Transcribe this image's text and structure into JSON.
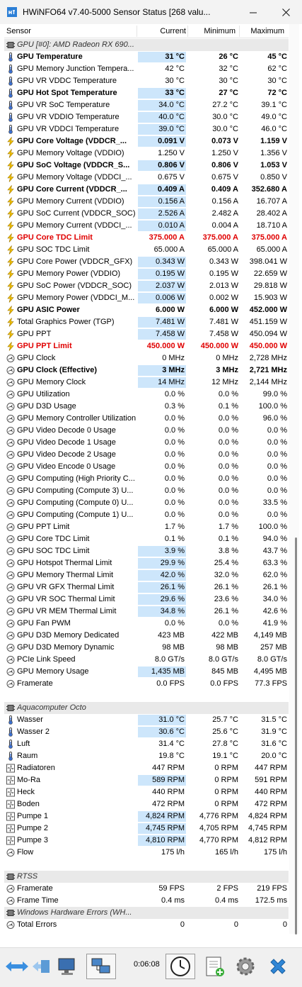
{
  "window": {
    "title": "HWiNFO64 v7.40-5000 Sensor Status [268 valu...",
    "icon": "hwinfo-app-icon"
  },
  "columns": {
    "sensor": "Sensor",
    "current": "Current",
    "minimum": "Minimum",
    "maximum": "Maximum"
  },
  "rows": [
    {
      "type": "group",
      "name": "GPU [#0]: AMD Radeon RX 690...",
      "icon": "chip-icon"
    },
    {
      "type": "row",
      "name": "GPU Temperature",
      "cur": "31 °C",
      "min": "26 °C",
      "max": "45 °C",
      "icon": "thermometer-icon",
      "bold": true,
      "hl": true
    },
    {
      "type": "row",
      "name": "GPU Memory Junction Tempera...",
      "cur": "42 °C",
      "min": "32 °C",
      "max": "62 °C",
      "icon": "thermometer-icon"
    },
    {
      "type": "row",
      "name": "GPU VR VDDC Temperature",
      "cur": "30 °C",
      "min": "30 °C",
      "max": "30 °C",
      "icon": "thermometer-icon"
    },
    {
      "type": "row",
      "name": "GPU Hot Spot Temperature",
      "cur": "33 °C",
      "min": "27 °C",
      "max": "72 °C",
      "icon": "thermometer-icon",
      "bold": true,
      "hl": true
    },
    {
      "type": "row",
      "name": "GPU VR SoC Temperature",
      "cur": "34.0 °C",
      "min": "27.2 °C",
      "max": "39.1 °C",
      "icon": "thermometer-icon",
      "hl": true
    },
    {
      "type": "row",
      "name": "GPU VR VDDIO Temperature",
      "cur": "40.0 °C",
      "min": "30.0 °C",
      "max": "49.0 °C",
      "icon": "thermometer-icon",
      "hl": true
    },
    {
      "type": "row",
      "name": "GPU VR VDDCI Temperature",
      "cur": "39.0 °C",
      "min": "30.0 °C",
      "max": "46.0 °C",
      "icon": "thermometer-icon",
      "hl": true
    },
    {
      "type": "row",
      "name": "GPU Core Voltage (VDDCR_...",
      "cur": "0.091 V",
      "min": "0.073 V",
      "max": "1.159 V",
      "icon": "bolt-icon",
      "bold": true,
      "hl": true
    },
    {
      "type": "row",
      "name": "GPU Memory Voltage (VDDIO)",
      "cur": "1.250 V",
      "min": "1.250 V",
      "max": "1.356 V",
      "icon": "bolt-icon"
    },
    {
      "type": "row",
      "name": "GPU SoC Voltage (VDDCR_S...",
      "cur": "0.806 V",
      "min": "0.806 V",
      "max": "1.053 V",
      "icon": "bolt-icon",
      "bold": true,
      "hl": true
    },
    {
      "type": "row",
      "name": "GPU Memory Voltage (VDDCI_...",
      "cur": "0.675 V",
      "min": "0.675 V",
      "max": "0.850 V",
      "icon": "bolt-icon"
    },
    {
      "type": "row",
      "name": "GPU Core Current (VDDCR_...",
      "cur": "0.409 A",
      "min": "0.409 A",
      "max": "352.680 A",
      "icon": "bolt-icon",
      "bold": true,
      "hl": true
    },
    {
      "type": "row",
      "name": "GPU Memory Current (VDDIO)",
      "cur": "0.156 A",
      "min": "0.156 A",
      "max": "16.707 A",
      "icon": "bolt-icon",
      "hl": true
    },
    {
      "type": "row",
      "name": "GPU SoC Current (VDDCR_SOC)",
      "cur": "2.526 A",
      "min": "2.482 A",
      "max": "28.402 A",
      "icon": "bolt-icon",
      "hl": true
    },
    {
      "type": "row",
      "name": "GPU Memory Current (VDDCI_...",
      "cur": "0.010 A",
      "min": "0.004 A",
      "max": "18.710 A",
      "icon": "bolt-icon",
      "hl": true
    },
    {
      "type": "row",
      "name": "GPU Core TDC Limit",
      "cur": "375.000 A",
      "min": "375.000 A",
      "max": "375.000 A",
      "icon": "bolt-icon",
      "red": true
    },
    {
      "type": "row",
      "name": "GPU SOC TDC Limit",
      "cur": "65.000 A",
      "min": "65.000 A",
      "max": "65.000 A",
      "icon": "bolt-icon"
    },
    {
      "type": "row",
      "name": "GPU Core Power (VDDCR_GFX)",
      "cur": "0.343 W",
      "min": "0.343 W",
      "max": "398.041 W",
      "icon": "bolt-icon",
      "hl": true
    },
    {
      "type": "row",
      "name": "GPU Memory Power (VDDIO)",
      "cur": "0.195 W",
      "min": "0.195 W",
      "max": "22.659 W",
      "icon": "bolt-icon",
      "hl": true
    },
    {
      "type": "row",
      "name": "GPU SoC Power (VDDCR_SOC)",
      "cur": "2.037 W",
      "min": "2.013 W",
      "max": "29.818 W",
      "icon": "bolt-icon",
      "hl": true
    },
    {
      "type": "row",
      "name": "GPU Memory Power (VDDCI_M...",
      "cur": "0.006 W",
      "min": "0.002 W",
      "max": "15.903 W",
      "icon": "bolt-icon",
      "hl": true
    },
    {
      "type": "row",
      "name": "GPU ASIC Power",
      "cur": "6.000 W",
      "min": "6.000 W",
      "max": "452.000 W",
      "icon": "bolt-icon",
      "bold": true
    },
    {
      "type": "row",
      "name": "Total Graphics Power (TGP)",
      "cur": "7.481 W",
      "min": "7.481 W",
      "max": "451.159 W",
      "icon": "bolt-icon",
      "hl": true
    },
    {
      "type": "row",
      "name": "GPU PPT",
      "cur": "7.458 W",
      "min": "7.458 W",
      "max": "450.094 W",
      "icon": "bolt-icon",
      "hl": true
    },
    {
      "type": "row",
      "name": "GPU PPT Limit",
      "cur": "450.000 W",
      "min": "450.000 W",
      "max": "450.000 W",
      "icon": "bolt-icon",
      "red": true
    },
    {
      "type": "row",
      "name": "GPU Clock",
      "cur": "0 MHz",
      "min": "0 MHz",
      "max": "2,728 MHz",
      "icon": "gauge-icon"
    },
    {
      "type": "row",
      "name": "GPU Clock (Effective)",
      "cur": "3 MHz",
      "min": "3 MHz",
      "max": "2,721 MHz",
      "icon": "gauge-icon",
      "bold": true,
      "hl": true
    },
    {
      "type": "row",
      "name": "GPU Memory Clock",
      "cur": "14 MHz",
      "min": "12 MHz",
      "max": "2,144 MHz",
      "icon": "gauge-icon",
      "hl": true
    },
    {
      "type": "row",
      "name": "GPU Utilization",
      "cur": "0.0 %",
      "min": "0.0 %",
      "max": "99.0 %",
      "icon": "gauge-icon"
    },
    {
      "type": "row",
      "name": "GPU D3D Usage",
      "cur": "0.3 %",
      "min": "0.1 %",
      "max": "100.0 %",
      "icon": "gauge-icon"
    },
    {
      "type": "row",
      "name": "GPU Memory Controller Utilization",
      "cur": "0.0 %",
      "min": "0.0 %",
      "max": "96.0 %",
      "icon": "gauge-icon"
    },
    {
      "type": "row",
      "name": "GPU Video Decode 0 Usage",
      "cur": "0.0 %",
      "min": "0.0 %",
      "max": "0.0 %",
      "icon": "gauge-icon"
    },
    {
      "type": "row",
      "name": "GPU Video Decode 1 Usage",
      "cur": "0.0 %",
      "min": "0.0 %",
      "max": "0.0 %",
      "icon": "gauge-icon"
    },
    {
      "type": "row",
      "name": "GPU Video Decode 2 Usage",
      "cur": "0.0 %",
      "min": "0.0 %",
      "max": "0.0 %",
      "icon": "gauge-icon"
    },
    {
      "type": "row",
      "name": "GPU Video Encode 0 Usage",
      "cur": "0.0 %",
      "min": "0.0 %",
      "max": "0.0 %",
      "icon": "gauge-icon"
    },
    {
      "type": "row",
      "name": "GPU Computing (High Priority C...",
      "cur": "0.0 %",
      "min": "0.0 %",
      "max": "0.0 %",
      "icon": "gauge-icon"
    },
    {
      "type": "row",
      "name": "GPU Computing (Compute 3) U...",
      "cur": "0.0 %",
      "min": "0.0 %",
      "max": "0.0 %",
      "icon": "gauge-icon"
    },
    {
      "type": "row",
      "name": "GPU Computing (Compute 0) U...",
      "cur": "0.0 %",
      "min": "0.0 %",
      "max": "33.5 %",
      "icon": "gauge-icon"
    },
    {
      "type": "row",
      "name": "GPU Computing (Compute 1) U...",
      "cur": "0.0 %",
      "min": "0.0 %",
      "max": "0.0 %",
      "icon": "gauge-icon"
    },
    {
      "type": "row",
      "name": "GPU PPT Limit",
      "cur": "1.7 %",
      "min": "1.7 %",
      "max": "100.0 %",
      "icon": "gauge-icon"
    },
    {
      "type": "row",
      "name": "GPU Core TDC Limit",
      "cur": "0.1 %",
      "min": "0.1 %",
      "max": "94.0 %",
      "icon": "gauge-icon"
    },
    {
      "type": "row",
      "name": "GPU SOC TDC Limit",
      "cur": "3.9 %",
      "min": "3.8 %",
      "max": "43.7 %",
      "icon": "gauge-icon",
      "hl": true
    },
    {
      "type": "row",
      "name": "GPU Hotspot Thermal Limit",
      "cur": "29.9 %",
      "min": "25.4 %",
      "max": "63.3 %",
      "icon": "gauge-icon",
      "hl": true
    },
    {
      "type": "row",
      "name": "GPU Memory Thermal Limit",
      "cur": "42.0 %",
      "min": "32.0 %",
      "max": "62.0 %",
      "icon": "gauge-icon",
      "hl": true
    },
    {
      "type": "row",
      "name": "GPU VR GFX Thermal Limit",
      "cur": "26.1 %",
      "min": "26.1 %",
      "max": "26.1 %",
      "icon": "gauge-icon",
      "hl": true
    },
    {
      "type": "row",
      "name": "GPU VR SOC Thermal Limit",
      "cur": "29.6 %",
      "min": "23.6 %",
      "max": "34.0 %",
      "icon": "gauge-icon",
      "hl": true
    },
    {
      "type": "row",
      "name": "GPU VR MEM Thermal Limit",
      "cur": "34.8 %",
      "min": "26.1 %",
      "max": "42.6 %",
      "icon": "gauge-icon",
      "hl": true
    },
    {
      "type": "row",
      "name": "GPU Fan PWM",
      "cur": "0.0 %",
      "min": "0.0 %",
      "max": "41.9 %",
      "icon": "gauge-icon"
    },
    {
      "type": "row",
      "name": "GPU D3D Memory Dedicated",
      "cur": "423 MB",
      "min": "422 MB",
      "max": "4,149 MB",
      "icon": "gauge-icon"
    },
    {
      "type": "row",
      "name": "GPU D3D Memory Dynamic",
      "cur": "98 MB",
      "min": "98 MB",
      "max": "257 MB",
      "icon": "gauge-icon"
    },
    {
      "type": "row",
      "name": "PCIe Link Speed",
      "cur": "8.0 GT/s",
      "min": "8.0 GT/s",
      "max": "8.0 GT/s",
      "icon": "gauge-icon"
    },
    {
      "type": "row",
      "name": "GPU Memory Usage",
      "cur": "1,435 MB",
      "min": "845 MB",
      "max": "4,495 MB",
      "icon": "gauge-icon",
      "hl": true
    },
    {
      "type": "row",
      "name": "Framerate",
      "cur": "0.0 FPS",
      "min": "0.0 FPS",
      "max": "77.3 FPS",
      "icon": "gauge-icon"
    },
    {
      "type": "blank"
    },
    {
      "type": "group",
      "name": "Aquacomputer Octo",
      "icon": "chip-icon"
    },
    {
      "type": "row",
      "name": "Wasser",
      "cur": "31.0 °C",
      "min": "25.7 °C",
      "max": "31.5 °C",
      "icon": "thermometer-icon",
      "hl": true
    },
    {
      "type": "row",
      "name": "Wasser 2",
      "cur": "30.6 °C",
      "min": "25.6 °C",
      "max": "31.9 °C",
      "icon": "thermometer-icon",
      "hl": true
    },
    {
      "type": "row",
      "name": "Luft",
      "cur": "31.4 °C",
      "min": "27.8 °C",
      "max": "31.6 °C",
      "icon": "thermometer-icon"
    },
    {
      "type": "row",
      "name": "Raum",
      "cur": "19.8 °C",
      "min": "19.1 °C",
      "max": "20.0 °C",
      "icon": "thermometer-icon"
    },
    {
      "type": "row",
      "name": "Radiatoren",
      "cur": "447 RPM",
      "min": "0 RPM",
      "max": "447 RPM",
      "icon": "fan-icon"
    },
    {
      "type": "row",
      "name": "Mo-Ra",
      "cur": "589 RPM",
      "min": "0 RPM",
      "max": "591 RPM",
      "icon": "fan-icon",
      "hl": true
    },
    {
      "type": "row",
      "name": "Heck",
      "cur": "440 RPM",
      "min": "0 RPM",
      "max": "440 RPM",
      "icon": "fan-icon"
    },
    {
      "type": "row",
      "name": "Boden",
      "cur": "472 RPM",
      "min": "0 RPM",
      "max": "472 RPM",
      "icon": "fan-icon"
    },
    {
      "type": "row",
      "name": "Pumpe 1",
      "cur": "4,824 RPM",
      "min": "4,776 RPM",
      "max": "4,824 RPM",
      "icon": "fan-icon",
      "hl": true
    },
    {
      "type": "row",
      "name": "Pumpe 2",
      "cur": "4,745 RPM",
      "min": "4,705 RPM",
      "max": "4,745 RPM",
      "icon": "fan-icon",
      "hl": true
    },
    {
      "type": "row",
      "name": "Pumpe 3",
      "cur": "4,810 RPM",
      "min": "4,770 RPM",
      "max": "4,812 RPM",
      "icon": "fan-icon",
      "hl": true
    },
    {
      "type": "row",
      "name": "Flow",
      "cur": "175 l/h",
      "min": "165 l/h",
      "max": "175 l/h",
      "icon": "gauge-icon"
    },
    {
      "type": "blank"
    },
    {
      "type": "group",
      "name": "RTSS",
      "icon": "chip-icon"
    },
    {
      "type": "row",
      "name": "Framerate",
      "cur": "59 FPS",
      "min": "2 FPS",
      "max": "219 FPS",
      "icon": "gauge-icon"
    },
    {
      "type": "row",
      "name": "Frame Time",
      "cur": "0.4 ms",
      "min": "0.4 ms",
      "max": "172.5 ms",
      "icon": "gauge-icon"
    },
    {
      "type": "group",
      "name": "Windows Hardware Errors (WH...",
      "icon": "chip-icon"
    },
    {
      "type": "row",
      "name": "Total Errors",
      "cur": "0",
      "min": "0",
      "max": "0",
      "icon": "gauge-icon"
    }
  ],
  "toolbar": {
    "timer": "0:06:08",
    "buttons": [
      "nav-arrows-icon",
      "network-icon",
      "clock-icon",
      "report-icon",
      "settings-icon",
      "close-icon"
    ]
  },
  "colors": {
    "highlight": "#cde6fb",
    "limit_red": "#e00000",
    "group_bg": "#e9e9e9"
  }
}
